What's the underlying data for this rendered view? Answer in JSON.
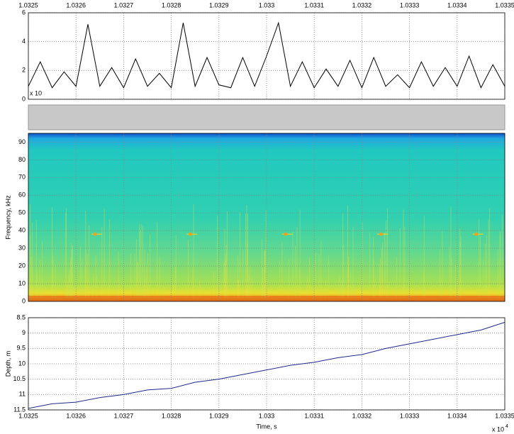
{
  "chart_data": [
    {
      "type": "line",
      "multiplier": "x 10",
      "x": [
        1.0325,
        1.032525,
        1.03255,
        1.032575,
        1.0326,
        1.032625,
        1.03265,
        1.032675,
        1.0327,
        1.032725,
        1.03275,
        1.032775,
        1.0328,
        1.032825,
        1.03285,
        1.032875,
        1.0329,
        1.032925,
        1.03295,
        1.032975,
        1.033,
        1.033025,
        1.03305,
        1.033075,
        1.0331,
        1.033125,
        1.03315,
        1.033175,
        1.0332,
        1.033225,
        1.03325,
        1.033275,
        1.0333,
        1.033325,
        1.03335,
        1.033375,
        1.0334,
        1.033425,
        1.03345,
        1.033475,
        1.0335
      ],
      "series": [
        {
          "color": "#000000",
          "values": [
            0.9,
            2.6,
            0.8,
            1.9,
            0.9,
            5.2,
            0.9,
            2.2,
            0.8,
            2.8,
            0.9,
            1.8,
            0.8,
            5.3,
            0.9,
            2.9,
            1.0,
            0.8,
            2.9,
            0.9,
            3.0,
            5.3,
            0.9,
            2.6,
            0.8,
            2.1,
            0.9,
            2.7,
            0.8,
            2.9,
            0.9,
            1.7,
            0.8,
            2.6,
            0.9,
            2.2,
            0.9,
            3.0,
            0.8,
            2.4,
            0.9
          ]
        }
      ],
      "xlim": [
        1.0325,
        1.0335
      ],
      "xticks": [
        1.0325,
        1.0326,
        1.0327,
        1.0328,
        1.0329,
        1.033,
        1.0331,
        1.0332,
        1.0333,
        1.0334,
        1.0335
      ],
      "ylim": [
        0,
        6
      ],
      "yticks": [
        0,
        2,
        4,
        6
      ],
      "grid": true
    },
    {
      "type": "spectrogram",
      "y_label": "Frequency, kHz",
      "xlim": [
        1.0325,
        1.0335
      ],
      "xticks": [
        1.0325,
        1.0326,
        1.0327,
        1.0328,
        1.0329,
        1.033,
        1.0331,
        1.0332,
        1.0333,
        1.0334,
        1.0335
      ],
      "ylim": [
        0,
        95
      ],
      "yticks": [
        0,
        10,
        20,
        30,
        40,
        50,
        60,
        70,
        80,
        90
      ],
      "grid": true
    },
    {
      "type": "line",
      "x_label": "Time, s",
      "y_label": "Depth, m",
      "multiplier": "x 10",
      "multiplier_exp": "4",
      "x": [
        1.0325,
        1.03255,
        1.0326,
        1.03265,
        1.0327,
        1.03275,
        1.0328,
        1.03285,
        1.0329,
        1.03295,
        1.033,
        1.03305,
        1.0331,
        1.03315,
        1.0332,
        1.03325,
        1.0333,
        1.03335,
        1.0334,
        1.03345,
        1.0335
      ],
      "series": [
        {
          "color": "#1f2a8a",
          "values": [
            11.45,
            11.3,
            11.25,
            11.1,
            11.0,
            10.85,
            10.8,
            10.6,
            10.5,
            10.35,
            10.2,
            10.05,
            9.95,
            9.8,
            9.7,
            9.5,
            9.35,
            9.2,
            9.05,
            8.9,
            8.65
          ]
        }
      ],
      "xlim": [
        1.0325,
        1.0335
      ],
      "xticks": [
        1.0325,
        1.0326,
        1.0327,
        1.0328,
        1.0329,
        1.033,
        1.0331,
        1.0332,
        1.0333,
        1.0334,
        1.0335
      ],
      "ylim": [
        11.5,
        8.5
      ],
      "yticks": [
        8.5,
        9,
        9.5,
        10,
        10.5,
        11,
        11.5
      ],
      "y_reversed": true,
      "grid": true
    }
  ]
}
